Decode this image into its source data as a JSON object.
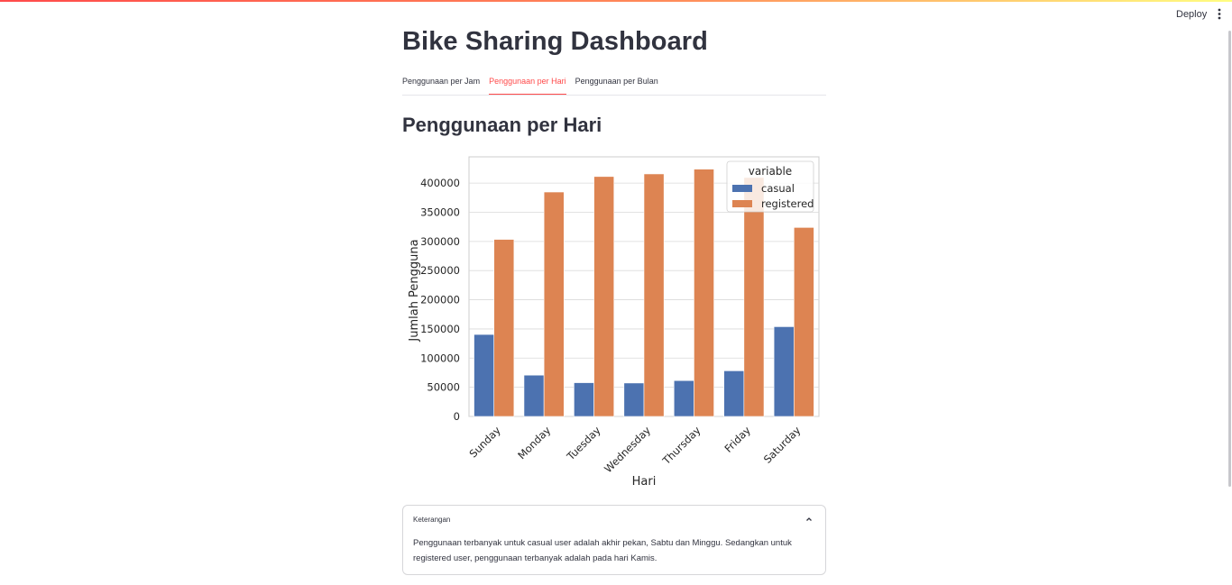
{
  "app": {
    "deploy_label": "Deploy",
    "menu_icon": "vertical-dots-icon",
    "accent_color": "#ff4b4b"
  },
  "page": {
    "title": "Bike Sharing Dashboard"
  },
  "tabs": [
    {
      "label": "Penggunaan per Jam",
      "active": false
    },
    {
      "label": "Penggunaan per Hari",
      "active": true
    },
    {
      "label": "Penggunaan per Bulan",
      "active": false
    }
  ],
  "section": {
    "title": "Penggunaan per Hari"
  },
  "chart_data": {
    "type": "bar",
    "categories": [
      "Sunday",
      "Monday",
      "Tuesday",
      "Wednesday",
      "Thursday",
      "Friday",
      "Saturday"
    ],
    "series": [
      {
        "name": "casual",
        "color": "#4c72b0",
        "values": [
          140521,
          70784,
          57843,
          57319,
          61460,
          78238,
          153852
        ]
      },
      {
        "name": "registered",
        "color": "#dd8452",
        "values": [
          303506,
          384719,
          411266,
          415729,
          423935,
          409552,
          323955
        ]
      }
    ],
    "xlabel": "Hari",
    "ylabel": "Jumlah Pengguna",
    "ylim": [
      0,
      445000
    ],
    "yticks": [
      0,
      50000,
      100000,
      150000,
      200000,
      250000,
      300000,
      350000,
      400000
    ],
    "legend": {
      "title": "variable",
      "placement": "top-right"
    },
    "grid": true
  },
  "expander": {
    "label": "Keterangan",
    "chevron_icon": "chevron-up-icon",
    "text": "Penggunaan terbanyak untuk casual user adalah akhir pekan, Sabtu dan Minggu. Sedangkan untuk registered user, penggunaan terbanyak adalah pada hari Kamis."
  }
}
